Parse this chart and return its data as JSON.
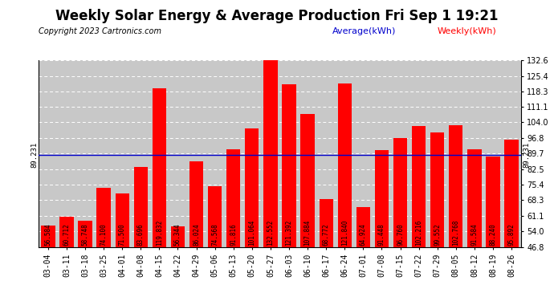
{
  "title": "Weekly Solar Energy & Average Production Fri Sep 1 19:21",
  "copyright": "Copyright 2023 Cartronics.com",
  "average_label": "Average(kWh)",
  "weekly_label": "Weekly(kWh)",
  "average_value": 89.231,
  "categories": [
    "03-04",
    "03-11",
    "03-18",
    "03-25",
    "04-01",
    "04-08",
    "04-15",
    "04-22",
    "04-29",
    "05-06",
    "05-13",
    "05-20",
    "05-27",
    "06-03",
    "06-10",
    "06-17",
    "06-24",
    "07-01",
    "07-08",
    "07-15",
    "07-22",
    "07-29",
    "08-05",
    "08-12",
    "08-19",
    "08-26"
  ],
  "values": [
    56.584,
    60.712,
    58.748,
    74.1,
    71.5,
    83.696,
    119.832,
    56.344,
    86.024,
    74.568,
    91.816,
    101.064,
    132.552,
    121.392,
    107.884,
    68.772,
    121.84,
    64.924,
    91.448,
    96.76,
    102.216,
    99.552,
    102.768,
    91.584,
    88.24,
    95.892
  ],
  "bar_color": "#ff0000",
  "dashed_line_color": "#ffffff",
  "average_line_color": "#0000cc",
  "background_color": "#ffffff",
  "plot_bg_color": "#c8c8c8",
  "ylim_min": 46.8,
  "ylim_max": 132.6,
  "yticks": [
    46.8,
    54.0,
    61.1,
    68.3,
    75.4,
    82.5,
    89.7,
    96.8,
    104.0,
    111.1,
    118.3,
    125.4,
    132.6
  ],
  "title_fontsize": 12,
  "copyright_fontsize": 7,
  "tick_label_fontsize": 7,
  "bar_label_fontsize": 5.5,
  "avg_annotation_fontsize": 6.5
}
